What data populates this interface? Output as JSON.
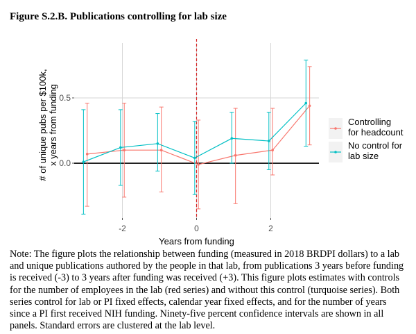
{
  "figure": {
    "title": "Figure S.2.B. Publications controlling for lab size",
    "note": "Note: The figure plots the relationship between funding (measured in 2018 BRDPI dollars) to a lab and unique publications authored by the people in that lab, from publications 3 years before funding is received (-3) to 3 years after funding was received (+3). This figure plots estimates with controls for the number of employees in the lab (red series) and without this control (turquoise series). Both series control for lab or PI fixed effects, calendar year fixed effects, and for the number of years since a PI first received NIH funding. Ninety-five percent confidence intervals are shown in all panels. Standard errors are clustered at the lab level."
  },
  "chart_data": {
    "type": "line",
    "xlabel": "Years from funding",
    "ylabel_lines": [
      "# of unique pubs per $100k,",
      "x years from funding"
    ],
    "xlim": [
      -3.3,
      3.3
    ],
    "ylim": [
      -0.42,
      0.92
    ],
    "x_ticks": [
      -2,
      0,
      2
    ],
    "x_tick_labels": [
      "-2",
      "0",
      "2"
    ],
    "y_ticks": [
      0.0,
      0.5
    ],
    "y_tick_labels": [
      "0.0",
      "0.5"
    ],
    "reference_vline": 0,
    "reference_hline": 0,
    "legend_position": "right",
    "series": [
      {
        "name": "Controlling for headcount",
        "legend_lines": [
          "Controlling",
          "for headcount"
        ],
        "color": "#F8766D",
        "x": [
          -3,
          -2,
          -1,
          0,
          1,
          2,
          3
        ],
        "y": [
          0.07,
          0.1,
          0.1,
          -0.01,
          0.06,
          0.1,
          0.44
        ],
        "lower": [
          -0.33,
          -0.26,
          -0.22,
          -0.35,
          -0.31,
          -0.09,
          0.14
        ],
        "upper": [
          0.46,
          0.46,
          0.43,
          0.33,
          0.42,
          0.42,
          0.74
        ]
      },
      {
        "name": "No control for lab size",
        "legend_lines": [
          "No control for",
          "lab size"
        ],
        "color": "#00BFC4",
        "x": [
          -3,
          -2,
          -1,
          0,
          1,
          2,
          3
        ],
        "y": [
          0.01,
          0.12,
          0.15,
          0.04,
          0.19,
          0.17,
          0.46
        ],
        "lower": [
          -0.39,
          -0.17,
          -0.06,
          -0.24,
          0.0,
          -0.05,
          0.13
        ],
        "upper": [
          0.41,
          0.41,
          0.38,
          0.32,
          0.39,
          0.39,
          0.79
        ]
      }
    ]
  }
}
